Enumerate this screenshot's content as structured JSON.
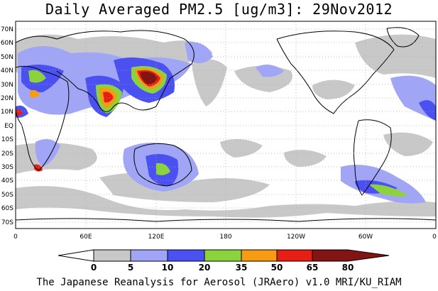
{
  "title": "Daily Averaged PM2.5 [ug/m3]: 29Nov2012",
  "credit": "The Japanese Reanalysis for Aerosol (JRAero) v1.0 MRI/KU_RIAM",
  "lat_labels": [
    "70N",
    "60N",
    "50N",
    "40N",
    "30N",
    "20N",
    "10N",
    "EQ",
    "10S",
    "20S",
    "30S",
    "40S",
    "50S",
    "60S",
    "70S"
  ],
  "lon_labels": [
    "0",
    "60E",
    "120E",
    "180",
    "120W",
    "60W",
    "0"
  ],
  "colorbar": {
    "levels": [
      "0",
      "5",
      "10",
      "20",
      "35",
      "50",
      "65",
      "80"
    ],
    "colors": [
      "#ffffff",
      "#c8c8c8",
      "#a0a5f5",
      "#4b50f0",
      "#8cd23c",
      "#f59b14",
      "#e61e14",
      "#821414"
    ]
  }
}
